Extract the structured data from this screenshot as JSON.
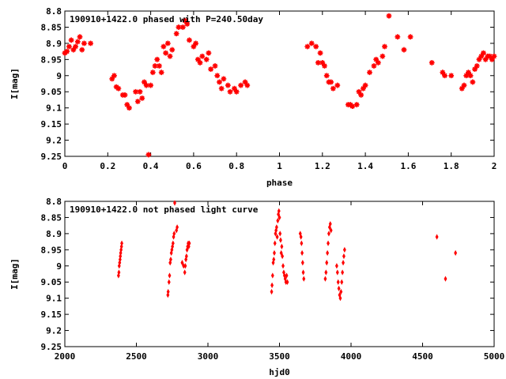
{
  "chart_data": [
    {
      "type": "scatter",
      "title": "190910+1422.0 phased with P=240.50day",
      "xlabel": "phase",
      "ylabel": "I[mag]",
      "xlim": [
        0,
        2
      ],
      "ylim": [
        8.8,
        9.25
      ],
      "y_inverted": true,
      "x_ticks": [
        "0",
        "0.2",
        "0.4",
        "0.6",
        "0.8",
        "1",
        "1.2",
        "1.4",
        "1.6",
        "1.8",
        "2"
      ],
      "y_ticks": [
        "8.8",
        "8.85",
        "8.9",
        "8.95",
        "9",
        "9.05",
        "9.1",
        "9.15",
        "9.2",
        "9.25"
      ],
      "marker": "star",
      "color": "#ff0000",
      "points": [
        [
          0.0,
          8.93
        ],
        [
          0.01,
          8.925
        ],
        [
          0.02,
          8.91
        ],
        [
          0.03,
          8.89
        ],
        [
          0.04,
          8.92
        ],
        [
          0.05,
          8.91
        ],
        [
          0.06,
          8.895
        ],
        [
          0.07,
          8.88
        ],
        [
          0.08,
          8.92
        ],
        [
          0.09,
          8.9
        ],
        [
          0.12,
          8.9
        ],
        [
          0.22,
          9.01
        ],
        [
          0.23,
          9.0
        ],
        [
          0.24,
          9.035
        ],
        [
          0.25,
          9.04
        ],
        [
          0.27,
          9.06
        ],
        [
          0.28,
          9.06
        ],
        [
          0.29,
          9.09
        ],
        [
          0.3,
          9.1
        ],
        [
          0.33,
          9.05
        ],
        [
          0.34,
          9.08
        ],
        [
          0.35,
          9.05
        ],
        [
          0.36,
          9.07
        ],
        [
          0.37,
          9.02
        ],
        [
          0.38,
          9.03
        ],
        [
          0.39,
          9.245
        ],
        [
          0.4,
          9.03
        ],
        [
          0.41,
          8.99
        ],
        [
          0.42,
          8.97
        ],
        [
          0.43,
          8.95
        ],
        [
          0.44,
          8.97
        ],
        [
          0.45,
          8.99
        ],
        [
          0.46,
          8.91
        ],
        [
          0.47,
          8.93
        ],
        [
          0.48,
          8.9
        ],
        [
          0.49,
          8.94
        ],
        [
          0.5,
          8.92
        ],
        [
          0.52,
          8.87
        ],
        [
          0.53,
          8.85
        ],
        [
          0.55,
          8.85
        ],
        [
          0.56,
          8.83
        ],
        [
          0.57,
          8.84
        ],
        [
          0.58,
          8.89
        ],
        [
          0.6,
          8.91
        ],
        [
          0.61,
          8.9
        ],
        [
          0.62,
          8.95
        ],
        [
          0.63,
          8.96
        ],
        [
          0.64,
          8.94
        ],
        [
          0.66,
          8.95
        ],
        [
          0.67,
          8.93
        ],
        [
          0.68,
          8.98
        ],
        [
          0.7,
          8.97
        ],
        [
          0.71,
          9.0
        ],
        [
          0.72,
          9.02
        ],
        [
          0.73,
          9.04
        ],
        [
          0.74,
          9.01
        ],
        [
          0.76,
          9.03
        ],
        [
          0.77,
          9.05
        ],
        [
          0.79,
          9.04
        ],
        [
          0.8,
          9.05
        ],
        [
          0.82,
          9.03
        ],
        [
          0.84,
          9.02
        ],
        [
          0.85,
          9.03
        ],
        [
          1.13,
          8.91
        ],
        [
          1.15,
          8.9
        ],
        [
          1.17,
          8.91
        ],
        [
          1.18,
          8.96
        ],
        [
          1.19,
          8.93
        ],
        [
          1.2,
          8.96
        ],
        [
          1.21,
          8.97
        ],
        [
          1.22,
          9.0
        ],
        [
          1.23,
          9.02
        ],
        [
          1.24,
          9.02
        ],
        [
          1.25,
          9.04
        ],
        [
          1.27,
          9.03
        ],
        [
          1.32,
          9.09
        ],
        [
          1.33,
          9.09
        ],
        [
          1.34,
          9.095
        ],
        [
          1.36,
          9.09
        ],
        [
          1.37,
          9.05
        ],
        [
          1.38,
          9.06
        ],
        [
          1.39,
          9.04
        ],
        [
          1.4,
          9.03
        ],
        [
          1.42,
          8.99
        ],
        [
          1.44,
          8.97
        ],
        [
          1.45,
          8.95
        ],
        [
          1.46,
          8.96
        ],
        [
          1.48,
          8.94
        ],
        [
          1.49,
          8.91
        ],
        [
          1.51,
          8.815
        ],
        [
          1.55,
          8.88
        ],
        [
          1.58,
          8.92
        ],
        [
          1.61,
          8.88
        ],
        [
          1.71,
          8.96
        ],
        [
          1.76,
          8.99
        ],
        [
          1.77,
          9.0
        ],
        [
          1.8,
          9.0
        ],
        [
          1.85,
          9.04
        ],
        [
          1.86,
          9.03
        ],
        [
          1.87,
          9.0
        ],
        [
          1.88,
          8.99
        ],
        [
          1.89,
          9.0
        ],
        [
          1.9,
          9.02
        ],
        [
          1.91,
          8.98
        ],
        [
          1.92,
          8.97
        ],
        [
          1.93,
          8.95
        ],
        [
          1.94,
          8.94
        ],
        [
          1.95,
          8.93
        ],
        [
          1.96,
          8.95
        ],
        [
          1.97,
          8.94
        ],
        [
          1.98,
          8.94
        ],
        [
          1.99,
          8.95
        ],
        [
          2.0,
          8.94
        ]
      ]
    },
    {
      "type": "scatter",
      "title": "190910+1422.0 not phased light curve",
      "xlabel": "hjd0",
      "ylabel": "I[mag]",
      "xlim": [
        2000,
        5000
      ],
      "ylim": [
        8.8,
        9.25
      ],
      "y_inverted": true,
      "x_ticks": [
        "2000",
        "2500",
        "3000",
        "3500",
        "4000",
        "4500",
        "5000"
      ],
      "y_ticks": [
        "8.8",
        "8.85",
        "8.9",
        "8.95",
        "9",
        "9.05",
        "9.1",
        "9.15",
        "9.2",
        "9.25"
      ],
      "marker": "diamond",
      "color": "#ff0000",
      "points": [
        [
          2375,
          9.03
        ],
        [
          2378,
          9.02
        ],
        [
          2380,
          9.0
        ],
        [
          2383,
          8.99
        ],
        [
          2386,
          8.98
        ],
        [
          2388,
          8.97
        ],
        [
          2390,
          8.96
        ],
        [
          2393,
          8.95
        ],
        [
          2396,
          8.94
        ],
        [
          2398,
          8.93
        ],
        [
          2720,
          9.09
        ],
        [
          2722,
          9.08
        ],
        [
          2728,
          9.05
        ],
        [
          2732,
          9.03
        ],
        [
          2736,
          8.99
        ],
        [
          2740,
          8.98
        ],
        [
          2744,
          8.96
        ],
        [
          2748,
          8.95
        ],
        [
          2752,
          8.94
        ],
        [
          2756,
          8.93
        ],
        [
          2760,
          8.91
        ],
        [
          2764,
          8.9
        ],
        [
          2768,
          8.805
        ],
        [
          2780,
          8.89
        ],
        [
          2785,
          8.88
        ],
        [
          2820,
          8.99
        ],
        [
          2830,
          9.0
        ],
        [
          2838,
          9.02
        ],
        [
          2842,
          9.0
        ],
        [
          2846,
          8.98
        ],
        [
          2850,
          8.97
        ],
        [
          2854,
          8.95
        ],
        [
          2858,
          8.94
        ],
        [
          2862,
          8.93
        ],
        [
          2866,
          8.94
        ],
        [
          2870,
          8.93
        ],
        [
          3445,
          9.08
        ],
        [
          3448,
          9.06
        ],
        [
          3452,
          9.03
        ],
        [
          3456,
          8.99
        ],
        [
          3460,
          8.98
        ],
        [
          3464,
          8.96
        ],
        [
          3468,
          8.93
        ],
        [
          3472,
          8.9
        ],
        [
          3476,
          8.89
        ],
        [
          3480,
          8.88
        ],
        [
          3484,
          8.91
        ],
        [
          3488,
          8.86
        ],
        [
          3492,
          8.84
        ],
        [
          3496,
          8.83
        ],
        [
          3500,
          8.85
        ],
        [
          3504,
          8.9
        ],
        [
          3508,
          8.92
        ],
        [
          3512,
          8.96
        ],
        [
          3516,
          8.94
        ],
        [
          3520,
          8.97
        ],
        [
          3525,
          9.0
        ],
        [
          3530,
          9.02
        ],
        [
          3535,
          9.03
        ],
        [
          3540,
          9.04
        ],
        [
          3545,
          9.05
        ],
        [
          3550,
          9.03
        ],
        [
          3555,
          9.05
        ],
        [
          3645,
          8.9
        ],
        [
          3650,
          8.91
        ],
        [
          3654,
          8.93
        ],
        [
          3658,
          8.96
        ],
        [
          3662,
          8.99
        ],
        [
          3666,
          9.02
        ],
        [
          3670,
          9.04
        ],
        [
          3820,
          9.04
        ],
        [
          3825,
          9.02
        ],
        [
          3830,
          8.99
        ],
        [
          3835,
          8.96
        ],
        [
          3840,
          8.93
        ],
        [
          3845,
          8.9
        ],
        [
          3850,
          8.88
        ],
        [
          3855,
          8.87
        ],
        [
          3860,
          8.89
        ],
        [
          3900,
          9.0
        ],
        [
          3905,
          9.02
        ],
        [
          3910,
          9.05
        ],
        [
          3915,
          9.07
        ],
        [
          3920,
          9.09
        ],
        [
          3925,
          9.1
        ],
        [
          3930,
          9.08
        ],
        [
          3935,
          9.05
        ],
        [
          3940,
          9.02
        ],
        [
          3945,
          8.99
        ],
        [
          3950,
          8.97
        ],
        [
          3955,
          8.95
        ],
        [
          4600,
          8.91
        ],
        [
          4660,
          9.04
        ],
        [
          4730,
          8.96
        ]
      ]
    }
  ]
}
